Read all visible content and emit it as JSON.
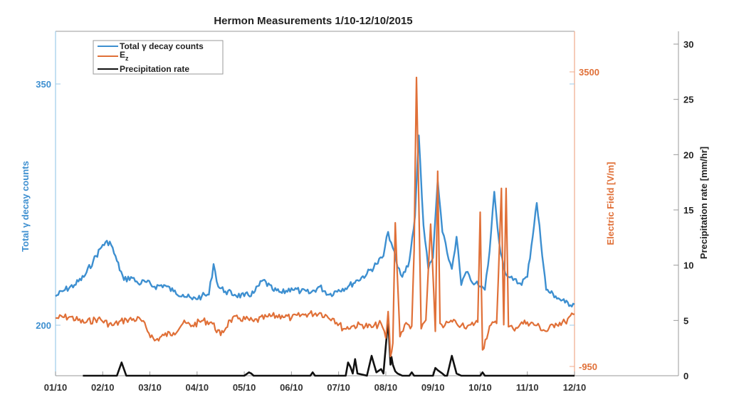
{
  "chart_data": {
    "type": "line",
    "title": "Hermon Measurements 1/10-12/10/2015",
    "xlabel": "",
    "x_tick_labels": [
      "01/10",
      "02/10",
      "03/10",
      "04/10",
      "05/10",
      "06/10",
      "07/10",
      "08/10",
      "09/10",
      "10/10",
      "11/10",
      "12/10"
    ],
    "axes": {
      "left": {
        "label": "Total γ decay counts",
        "ticks": [
          200,
          350
        ],
        "color": "#3d8fd0"
      },
      "right_inner": {
        "label": "Electric Field [V/m]",
        "ticks": [
          -950,
          3500
        ],
        "color": "#e07038"
      },
      "right_outer": {
        "label": "Precipitation rate [mm/hr]",
        "ticks": [
          0,
          5,
          10,
          15,
          20,
          25,
          30
        ],
        "ylim": [
          0,
          30
        ],
        "color": "#222222"
      }
    },
    "legend": {
      "position": "upper left",
      "entries": [
        {
          "label": "Total γ decay counts",
          "color": "#3d8fd0"
        },
        {
          "label": "E",
          "subscript": "z",
          "color": "#e07038"
        },
        {
          "label": "Precipitation rate",
          "color": "#111111"
        }
      ]
    },
    "grid": false,
    "series": [
      {
        "name": "Total γ decay counts",
        "axis": "left",
        "color": "#3d8fd0",
        "x_months": [
          0,
          0.2,
          0.4,
          0.6,
          0.8,
          1.0,
          1.15,
          1.3,
          1.45,
          1.6,
          1.75,
          1.9,
          2.1,
          2.3,
          2.5,
          2.7,
          2.9,
          3.1,
          3.25,
          3.35,
          3.45,
          3.6,
          3.8,
          4.0,
          4.2,
          4.4,
          4.6,
          4.8,
          5.0,
          5.2,
          5.4,
          5.6,
          5.8,
          6.0,
          6.2,
          6.4,
          6.6,
          6.8,
          6.95,
          7.05,
          7.15,
          7.25,
          7.35,
          7.5,
          7.62,
          7.7,
          7.8,
          7.9,
          8.0,
          8.1,
          8.2,
          8.3,
          8.4,
          8.5,
          8.6,
          8.7,
          8.8,
          8.9,
          9.0,
          9.1,
          9.2,
          9.3,
          9.4,
          9.5,
          9.6,
          9.7,
          9.85,
          10.0,
          10.2,
          10.4,
          10.6,
          10.8,
          11.0
        ],
        "values": [
          218,
          222,
          225,
          230,
          240,
          250,
          252,
          240,
          228,
          230,
          226,
          227,
          224,
          225,
          221,
          219,
          216,
          218,
          219,
          238,
          224,
          221,
          219,
          218,
          220,
          228,
          222,
          220,
          223,
          221,
          220,
          224,
          219,
          222,
          224,
          228,
          232,
          238,
          243,
          258,
          248,
          236,
          230,
          240,
          268,
          318,
          262,
          235,
          242,
          290,
          258,
          245,
          235,
          255,
          225,
          233,
          228,
          226,
          224,
          222,
          246,
          283,
          252,
          236,
          230,
          228,
          226,
          230,
          276,
          222,
          218,
          214,
          213
        ],
        "note": "values estimated from pixels; dense noise omitted"
      },
      {
        "name": "Ez",
        "axis": "right_inner",
        "color": "#e07038",
        "x_months": [
          0,
          0.3,
          0.6,
          0.9,
          1.2,
          1.5,
          1.8,
          2.1,
          2.3,
          2.5,
          2.7,
          2.9,
          3.1,
          3.3,
          3.5,
          3.7,
          3.9,
          4.2,
          4.5,
          4.8,
          5.0,
          5.3,
          5.6,
          5.9,
          6.1,
          6.3,
          6.5,
          6.7,
          6.9,
          7.0,
          7.05,
          7.1,
          7.15,
          7.2,
          7.3,
          7.4,
          7.55,
          7.6,
          7.65,
          7.75,
          7.85,
          7.95,
          8.05,
          8.1,
          8.15,
          8.25,
          8.35,
          8.5,
          8.6,
          8.7,
          8.8,
          8.95,
          9.0,
          9.05,
          9.2,
          9.35,
          9.45,
          9.5,
          9.55,
          9.6,
          9.7,
          9.85,
          10.0,
          10.2,
          10.4,
          10.6,
          10.8,
          11.0
        ],
        "values": [
          -220,
          -200,
          -290,
          -230,
          -330,
          -240,
          -240,
          -560,
          -480,
          -440,
          -300,
          -330,
          -260,
          -280,
          -480,
          -250,
          -220,
          -270,
          -200,
          -180,
          -220,
          -160,
          -140,
          -230,
          -380,
          -340,
          -320,
          -360,
          -300,
          -520,
          -120,
          -800,
          -600,
          1220,
          -500,
          -320,
          -340,
          800,
          3415,
          -380,
          -250,
          1200,
          -420,
          2000,
          -300,
          -330,
          -280,
          -300,
          -330,
          -380,
          -320,
          -280,
          1380,
          -700,
          -340,
          -300,
          1740,
          -320,
          1740,
          -350,
          -380,
          -310,
          -280,
          -330,
          -420,
          -300,
          -280,
          -160
        ],
        "note": "values estimated from pixels; dense noise omitted"
      },
      {
        "name": "Precipitation rate",
        "axis": "right_outer",
        "color": "#111111",
        "x_months": [
          0.58,
          1.0,
          1.3,
          1.4,
          1.5,
          2.0,
          3.0,
          4.0,
          4.1,
          4.15,
          4.2,
          5.0,
          5.4,
          5.45,
          5.5,
          6.0,
          6.15,
          6.2,
          6.25,
          6.3,
          6.35,
          6.4,
          6.6,
          6.7,
          6.8,
          6.9,
          6.95,
          7.05,
          7.1,
          7.12,
          7.15,
          7.2,
          7.25,
          7.35,
          7.5,
          7.55,
          7.6,
          7.7,
          8.0,
          8.05,
          8.1,
          8.2,
          8.25,
          8.3,
          8.4,
          8.5,
          8.6,
          8.7,
          9.0,
          9.05,
          9.1,
          9.2,
          9.6,
          9.65,
          9.7,
          9.75,
          11.0
        ],
        "values": [
          0,
          0,
          0,
          1.2,
          0,
          0,
          0,
          0,
          0.3,
          0.2,
          0,
          0,
          0,
          0.3,
          0,
          0,
          0,
          1.2,
          0.8,
          0.2,
          1.5,
          0.2,
          0,
          1.8,
          0.3,
          0.6,
          0.2,
          5.1,
          1.0,
          1.7,
          1.0,
          0.4,
          0.2,
          0,
          0,
          0.3,
          0,
          0,
          0,
          0.7,
          0.5,
          0.2,
          0,
          0,
          1.8,
          0.2,
          0,
          0,
          0,
          0.3,
          0,
          0,
          0,
          0,
          0,
          0,
          0
        ],
        "note": "values estimated from pixels"
      }
    ]
  }
}
